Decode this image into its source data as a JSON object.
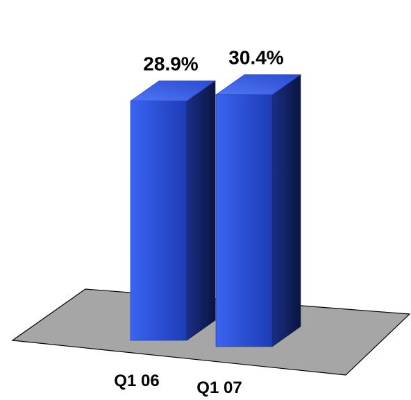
{
  "chart_data": {
    "type": "bar",
    "categories": [
      "Q1 06",
      "Q1 07"
    ],
    "values": [
      28.9,
      30.4
    ],
    "data_labels": [
      "28.9%",
      "30.4%"
    ],
    "style": "3d-column",
    "bar_color": "#2f56e0",
    "floor_color": "#a6a6a6",
    "grid": false,
    "legend": "none"
  }
}
